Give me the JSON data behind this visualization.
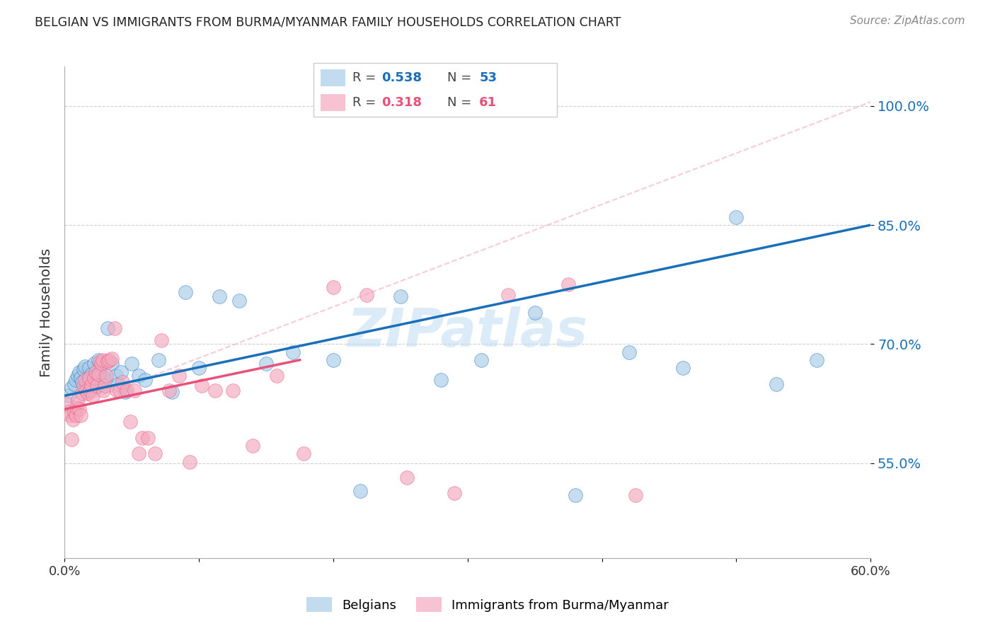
{
  "title": "BELGIAN VS IMMIGRANTS FROM BURMA/MYANMAR FAMILY HOUSEHOLDS CORRELATION CHART",
  "source": "Source: ZipAtlas.com",
  "ylabel": "Family Households",
  "watermark": "ZIPatlas",
  "xmin": 0.0,
  "xmax": 0.6,
  "ymin": 0.43,
  "ymax": 1.05,
  "yticks": [
    0.55,
    0.7,
    0.85,
    1.0
  ],
  "ytick_labels": [
    "55.0%",
    "70.0%",
    "85.0%",
    "100.0%"
  ],
  "xticks": [
    0.0,
    0.1,
    0.2,
    0.3,
    0.4,
    0.5,
    0.6
  ],
  "xtick_labels": [
    "0.0%",
    "",
    "",
    "",
    "",
    "",
    "60.0%"
  ],
  "legend_blue_r": "0.538",
  "legend_blue_n": "53",
  "legend_pink_r": "0.318",
  "legend_pink_n": "61",
  "blue_color": "#a8cce8",
  "pink_color": "#f4a8be",
  "blue_line_color": "#1a6fba",
  "pink_line_color": "#e8517a",
  "blue_scatter_color": "#a8cce8",
  "pink_scatter_color": "#f4a8be",
  "blue_x": [
    0.003,
    0.005,
    0.007,
    0.008,
    0.01,
    0.011,
    0.012,
    0.013,
    0.014,
    0.015,
    0.016,
    0.017,
    0.018,
    0.019,
    0.02,
    0.021,
    0.022,
    0.023,
    0.024,
    0.025,
    0.026,
    0.027,
    0.028,
    0.03,
    0.032,
    0.035,
    0.038,
    0.04,
    0.042,
    0.045,
    0.05,
    0.055,
    0.06,
    0.07,
    0.08,
    0.09,
    0.1,
    0.115,
    0.13,
    0.15,
    0.17,
    0.2,
    0.22,
    0.25,
    0.28,
    0.31,
    0.35,
    0.38,
    0.42,
    0.46,
    0.5,
    0.53,
    0.56
  ],
  "blue_y": [
    0.635,
    0.645,
    0.65,
    0.655,
    0.66,
    0.665,
    0.658,
    0.652,
    0.668,
    0.672,
    0.648,
    0.655,
    0.67,
    0.658,
    0.662,
    0.65,
    0.675,
    0.645,
    0.66,
    0.68,
    0.665,
    0.66,
    0.65,
    0.658,
    0.72,
    0.675,
    0.66,
    0.65,
    0.665,
    0.64,
    0.675,
    0.66,
    0.655,
    0.68,
    0.64,
    0.765,
    0.67,
    0.76,
    0.755,
    0.675,
    0.69,
    0.68,
    0.515,
    0.76,
    0.655,
    0.68,
    0.74,
    0.51,
    0.69,
    0.67,
    0.86,
    0.65,
    0.68
  ],
  "pink_x": [
    0.002,
    0.003,
    0.004,
    0.005,
    0.006,
    0.007,
    0.008,
    0.009,
    0.01,
    0.011,
    0.012,
    0.013,
    0.014,
    0.015,
    0.016,
    0.017,
    0.018,
    0.019,
    0.02,
    0.021,
    0.022,
    0.023,
    0.024,
    0.025,
    0.026,
    0.027,
    0.028,
    0.029,
    0.03,
    0.031,
    0.032,
    0.033,
    0.035,
    0.037,
    0.039,
    0.041,
    0.043,
    0.046,
    0.049,
    0.052,
    0.055,
    0.058,
    0.062,
    0.067,
    0.072,
    0.078,
    0.085,
    0.093,
    0.102,
    0.112,
    0.125,
    0.14,
    0.158,
    0.178,
    0.2,
    0.225,
    0.255,
    0.29,
    0.33,
    0.375,
    0.425
  ],
  "pink_y": [
    0.625,
    0.615,
    0.61,
    0.58,
    0.605,
    0.615,
    0.61,
    0.62,
    0.63,
    0.618,
    0.61,
    0.638,
    0.648,
    0.655,
    0.642,
    0.638,
    0.658,
    0.642,
    0.648,
    0.635,
    0.658,
    0.665,
    0.648,
    0.662,
    0.678,
    0.675,
    0.68,
    0.642,
    0.648,
    0.66,
    0.678,
    0.68,
    0.682,
    0.72,
    0.642,
    0.642,
    0.652,
    0.642,
    0.602,
    0.642,
    0.562,
    0.582,
    0.582,
    0.562,
    0.705,
    0.642,
    0.66,
    0.552,
    0.648,
    0.642,
    0.642,
    0.572,
    0.66,
    0.562,
    0.772,
    0.762,
    0.532,
    0.512,
    0.762,
    0.775,
    0.51
  ],
  "blue_line_x0": 0.0,
  "blue_line_x1": 0.6,
  "blue_line_y0": 0.635,
  "blue_line_y1": 0.85,
  "pink_line_x0": 0.0,
  "pink_line_x1": 0.175,
  "pink_line_y0": 0.618,
  "pink_line_y1": 0.68,
  "ref_line_x0": 0.0,
  "ref_line_x1": 0.6,
  "ref_line_y0": 0.618,
  "ref_line_y1": 1.005
}
